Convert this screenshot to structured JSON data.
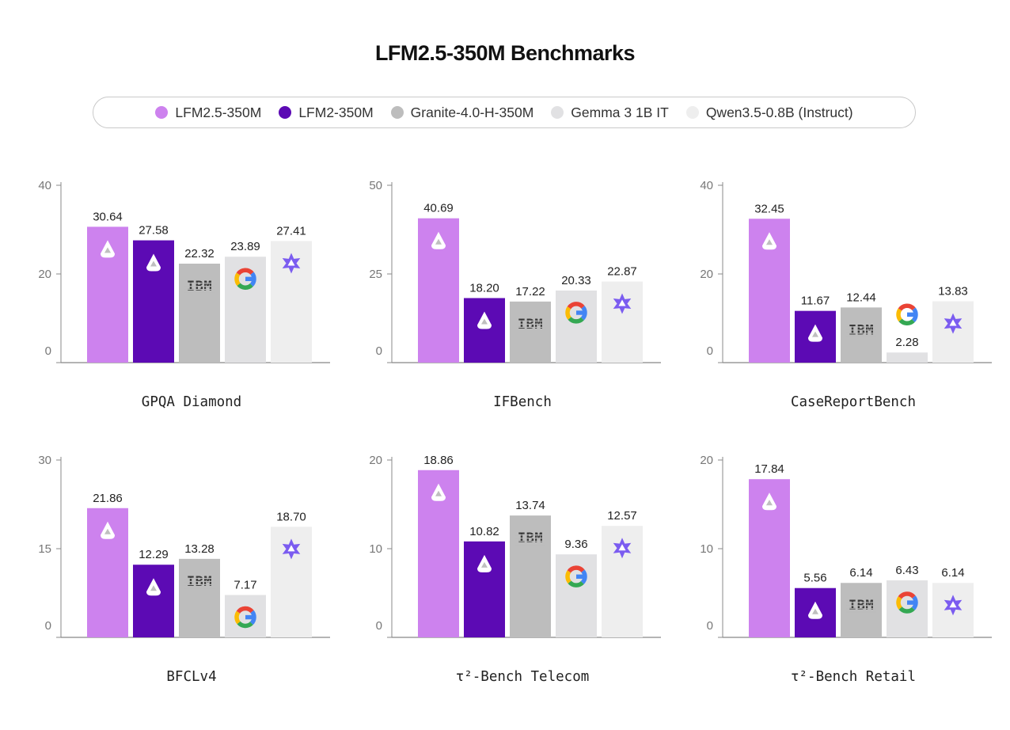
{
  "title": "LFM2.5-350M Benchmarks",
  "legend": [
    {
      "label": "LFM2.5-350M",
      "color": "#cd82ee",
      "icon": "liquid-drop-icon"
    },
    {
      "label": "LFM2-350M",
      "color": "#5c0ab4",
      "icon": "liquid-drop-icon"
    },
    {
      "label": "Granite-4.0-H-350M",
      "color": "#bdbdbd",
      "icon": "ibm-logo-icon"
    },
    {
      "label": "Gemma 3 1B IT",
      "color": "#e1e1e3",
      "icon": "google-g-icon"
    },
    {
      "label": "Qwen3.5-0.8B (Instruct)",
      "color": "#eeeeee",
      "icon": "qwen-star-icon"
    }
  ],
  "ibm_text": "IBM",
  "chart_data": [
    {
      "type": "bar",
      "title": "GPQA Diamond",
      "ylim": [
        0,
        40
      ],
      "yticks": [
        0,
        20,
        40
      ],
      "categories": [
        "LFM2.5-350M",
        "LFM2-350M",
        "Granite-4.0-H-350M",
        "Gemma 3 1B IT",
        "Qwen3.5-0.8B (Instruct)"
      ],
      "values": [
        30.64,
        27.58,
        22.32,
        23.89,
        27.41
      ],
      "labels": [
        "30.64",
        "27.58",
        "22.32",
        "23.89",
        "27.41"
      ]
    },
    {
      "type": "bar",
      "title": "IFBench",
      "ylim": [
        0,
        50
      ],
      "yticks": [
        0,
        25,
        50
      ],
      "categories": [
        "LFM2.5-350M",
        "LFM2-350M",
        "Granite-4.0-H-350M",
        "Gemma 3 1B IT",
        "Qwen3.5-0.8B (Instruct)"
      ],
      "values": [
        40.69,
        18.2,
        17.22,
        20.33,
        22.87
      ],
      "labels": [
        "40.69",
        "18.20",
        "17.22",
        "20.33",
        "22.87"
      ]
    },
    {
      "type": "bar",
      "title": "CaseReportBench",
      "ylim": [
        0,
        40
      ],
      "yticks": [
        0,
        20,
        40
      ],
      "categories": [
        "LFM2.5-350M",
        "LFM2-350M",
        "Granite-4.0-H-350M",
        "Gemma 3 1B IT",
        "Qwen3.5-0.8B (Instruct)"
      ],
      "values": [
        32.45,
        11.67,
        12.44,
        2.28,
        13.83
      ],
      "labels": [
        "32.45",
        "11.67",
        "12.44",
        "2.28",
        "13.83"
      ]
    },
    {
      "type": "bar",
      "title": "BFCLv4",
      "ylim": [
        0,
        30
      ],
      "yticks": [
        0,
        15,
        30
      ],
      "categories": [
        "LFM2.5-350M",
        "LFM2-350M",
        "Granite-4.0-H-350M",
        "Gemma 3 1B IT",
        "Qwen3.5-0.8B (Instruct)"
      ],
      "values": [
        21.86,
        12.29,
        13.28,
        7.17,
        18.7
      ],
      "labels": [
        "21.86",
        "12.29",
        "13.28",
        "7.17",
        "18.70"
      ]
    },
    {
      "type": "bar",
      "title": "τ²-Bench Telecom",
      "ylim": [
        0,
        20
      ],
      "yticks": [
        0,
        10,
        20
      ],
      "categories": [
        "LFM2.5-350M",
        "LFM2-350M",
        "Granite-4.0-H-350M",
        "Gemma 3 1B IT",
        "Qwen3.5-0.8B (Instruct)"
      ],
      "values": [
        18.86,
        10.82,
        13.74,
        9.36,
        12.57
      ],
      "labels": [
        "18.86",
        "10.82",
        "13.74",
        "9.36",
        "12.57"
      ]
    },
    {
      "type": "bar",
      "title": "τ²-Bench Retail",
      "ylim": [
        0,
        20
      ],
      "yticks": [
        0,
        10,
        20
      ],
      "categories": [
        "LFM2.5-350M",
        "LFM2-350M",
        "Granite-4.0-H-350M",
        "Gemma 3 1B IT",
        "Qwen3.5-0.8B (Instruct)"
      ],
      "values": [
        17.84,
        5.56,
        6.14,
        6.43,
        6.14
      ],
      "labels": [
        "17.84",
        "5.56",
        "6.14",
        "6.43",
        "6.14"
      ]
    }
  ]
}
